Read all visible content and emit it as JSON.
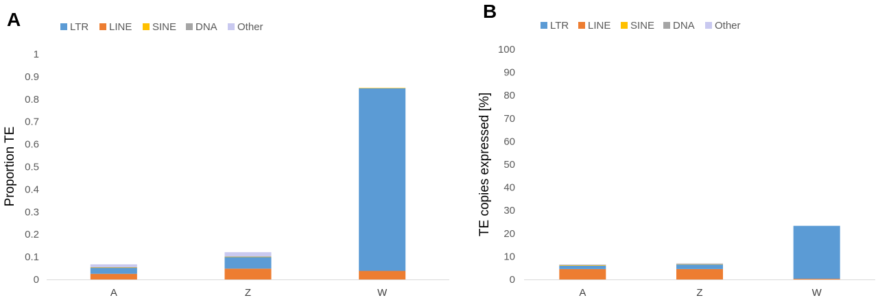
{
  "colors": {
    "LTR": "#5b9bd5",
    "LINE": "#ed7d31",
    "SINE": "#ffc000",
    "DNA": "#a5a5a5",
    "Other": "#c9c9f0",
    "axis": "#d9d9d9"
  },
  "chart_data": [
    {
      "panel": "A",
      "type": "bar",
      "stacked": true,
      "categories": [
        "A",
        "Z",
        "W"
      ],
      "ylabel": "Proportion TE",
      "xlabel": "",
      "ylim": [
        0,
        1
      ],
      "yticks": [
        "0",
        "0.1",
        "0.2",
        "0.3",
        "0.4",
        "0.5",
        "0.6",
        "0.7",
        "0.8",
        "0.9",
        "1"
      ],
      "legend_position": "top",
      "series": [
        {
          "name": "LINE",
          "values": [
            0.025,
            0.048,
            0.038
          ]
        },
        {
          "name": "LTR",
          "values": [
            0.027,
            0.052,
            0.81
          ]
        },
        {
          "name": "SINE",
          "values": [
            0.001,
            0.001,
            0.002
          ]
        },
        {
          "name": "DNA",
          "values": [
            0.002,
            0.002,
            0.0
          ]
        },
        {
          "name": "Other",
          "values": [
            0.012,
            0.018,
            0.0
          ]
        }
      ],
      "legend": [
        "LTR",
        "LINE",
        "SINE",
        "DNA",
        "Other"
      ]
    },
    {
      "panel": "B",
      "type": "bar",
      "stacked": true,
      "categories": [
        "A",
        "Z",
        "W"
      ],
      "ylabel": "TE copies expressed [%]",
      "xlabel": "",
      "ylim": [
        0,
        100
      ],
      "yticks": [
        "0",
        "10",
        "20",
        "30",
        "40",
        "50",
        "60",
        "70",
        "80",
        "90",
        "100"
      ],
      "legend_position": "top",
      "series": [
        {
          "name": "LINE",
          "values": [
            4.5,
            4.5,
            0.3
          ]
        },
        {
          "name": "LTR",
          "values": [
            1.5,
            2.0,
            23.0
          ]
        },
        {
          "name": "SINE",
          "values": [
            0.3,
            0.2,
            0.0
          ]
        },
        {
          "name": "DNA",
          "values": [
            0.1,
            0.1,
            0.0
          ]
        },
        {
          "name": "Other",
          "values": [
            0.1,
            0.2,
            0.0
          ]
        }
      ],
      "legend": [
        "LTR",
        "LINE",
        "SINE",
        "DNA",
        "Other"
      ]
    }
  ]
}
